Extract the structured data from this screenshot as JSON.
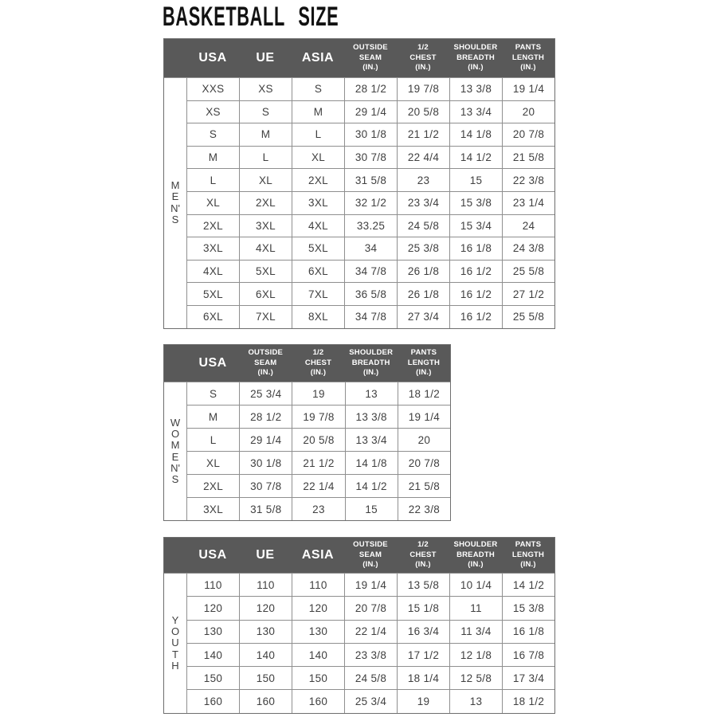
{
  "page": {
    "title": "BASKETBALL SIZE"
  },
  "colors": {
    "header_bg": "#595959",
    "header_text": "#ffffff",
    "cell_text": "#404040",
    "border": "#8f8f8f",
    "title": "#121212"
  },
  "chart_data": [
    {
      "type": "table",
      "group_label": "MEN'S",
      "group_letters": [
        "M",
        "E",
        "N'",
        "S"
      ],
      "columns": [
        "USA",
        "UE",
        "ASIA",
        "OUTSIDE\nSEAM\n(IN.)",
        "1/2\nCHEST\n(IN.)",
        "SHOULDER\nBREADTH\n(IN.)",
        "PANTS\nLENGTH\n(IN.)"
      ],
      "rows": [
        [
          "XXS",
          "XS",
          "S",
          "28 1/2",
          "19 7/8",
          "13 3/8",
          "19 1/4"
        ],
        [
          "XS",
          "S",
          "M",
          "29 1/4",
          "20 5/8",
          "13 3/4",
          "20"
        ],
        [
          "S",
          "M",
          "L",
          "30 1/8",
          "21 1/2",
          "14 1/8",
          "20 7/8"
        ],
        [
          "M",
          "L",
          "XL",
          "30 7/8",
          "22 4/4",
          "14 1/2",
          "21 5/8"
        ],
        [
          "L",
          "XL",
          "2XL",
          "31 5/8",
          "23",
          "15",
          "22 3/8"
        ],
        [
          "XL",
          "2XL",
          "3XL",
          "32 1/2",
          "23 3/4",
          "15 3/8",
          "23 1/4"
        ],
        [
          "2XL",
          "3XL",
          "4XL",
          "33.25",
          "24 5/8",
          "15 3/4",
          "24"
        ],
        [
          "3XL",
          "4XL",
          "5XL",
          "34",
          "25 3/8",
          "16 1/8",
          "24 3/8"
        ],
        [
          "4XL",
          "5XL",
          "6XL",
          "34 7/8",
          "26 1/8",
          "16 1/2",
          "25 5/8"
        ],
        [
          "5XL",
          "6XL",
          "7XL",
          "36 5/8",
          "26 1/8",
          "16 1/2",
          "27 1/2"
        ],
        [
          "6XL",
          "7XL",
          "8XL",
          "34 7/8",
          "27 3/4",
          "16 1/2",
          "25 5/8"
        ]
      ]
    },
    {
      "type": "table",
      "group_label": "WOMEN'S",
      "group_letters": [
        "W",
        "O",
        "M",
        "E",
        "N'",
        "S"
      ],
      "columns": [
        "USA",
        "OUTSIDE\nSEAM\n(IN.)",
        "1/2\nCHEST\n(IN.)",
        "SHOULDER\nBREADTH\n(IN.)",
        "PANTS\nLENGTH\n(IN.)"
      ],
      "rows": [
        [
          "S",
          "25 3/4",
          "19",
          "13",
          "18 1/2"
        ],
        [
          "M",
          "28 1/2",
          "19 7/8",
          "13 3/8",
          "19 1/4"
        ],
        [
          "L",
          "29 1/4",
          "20 5/8",
          "13 3/4",
          "20"
        ],
        [
          "XL",
          "30 1/8",
          "21 1/2",
          "14 1/8",
          "20 7/8"
        ],
        [
          "2XL",
          "30 7/8",
          "22 1/4",
          "14 1/2",
          "21 5/8"
        ],
        [
          "3XL",
          "31 5/8",
          "23",
          "15",
          "22 3/8"
        ]
      ]
    },
    {
      "type": "table",
      "group_label": "YOUTH",
      "group_letters": [
        "Y",
        "O",
        "U",
        "T",
        "H"
      ],
      "columns": [
        "USA",
        "UE",
        "ASIA",
        "OUTSIDE\nSEAM\n(IN.)",
        "1/2\nCHEST\n(IN.)",
        "SHOULDER\nBREADTH\n(IN.)",
        "PANTS\nLENGTH\n(IN.)"
      ],
      "rows": [
        [
          "110",
          "110",
          "110",
          "19 1/4",
          "13 5/8",
          "10 1/4",
          "14 1/2"
        ],
        [
          "120",
          "120",
          "120",
          "20 7/8",
          "15 1/8",
          "11",
          "15 3/8"
        ],
        [
          "130",
          "130",
          "130",
          "22 1/4",
          "16 3/4",
          "11 3/4",
          "16 1/8"
        ],
        [
          "140",
          "140",
          "140",
          "23 3/8",
          "17 1/2",
          "12 1/8",
          "16 7/8"
        ],
        [
          "150",
          "150",
          "150",
          "24 5/8",
          "18 1/4",
          "12 5/8",
          "17 3/4"
        ],
        [
          "160",
          "160",
          "160",
          "25 3/4",
          "19",
          "13",
          "18 1/2"
        ]
      ]
    }
  ]
}
